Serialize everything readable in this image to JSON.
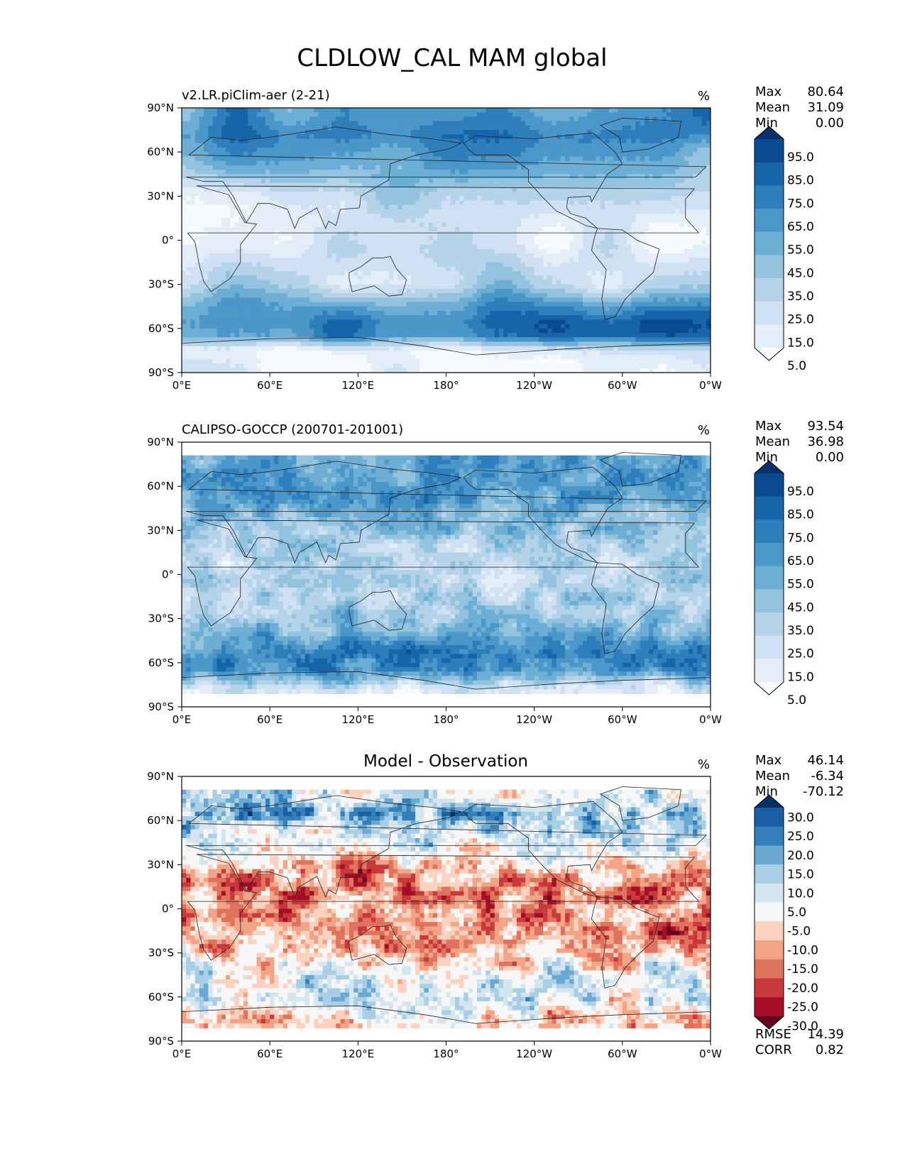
{
  "figure": {
    "title": "CLDLOW_CAL MAM global"
  },
  "chart_data": [
    {
      "type": "heatmap",
      "projection": "PlateCarree",
      "title": "v2.LR.piClim-aer (2-21)",
      "centered_title": "",
      "units": "%",
      "stats": [
        {
          "label": "Max",
          "value": "80.64"
        },
        {
          "label": "Mean",
          "value": "31.09"
        },
        {
          "label": "Min",
          "value": "0.00"
        }
      ],
      "x_ticks": [
        "0°E",
        "60°E",
        "120°E",
        "180°",
        "120°W",
        "60°W",
        "0°W"
      ],
      "y_ticks": [
        "90°N",
        "60°N",
        "30°N",
        "0°",
        "30°S",
        "60°S",
        "90°S"
      ],
      "xlim": [
        0,
        360
      ],
      "ylim": [
        -90,
        90
      ],
      "colorbar": {
        "colors": [
          "#f7fbff",
          "#e3eef9",
          "#cfe1f2",
          "#b5d4e9",
          "#93c3df",
          "#6daed5",
          "#4b97c9",
          "#2f7ebc",
          "#1864aa",
          "#0a4a90",
          "#08306b"
        ],
        "labels": [
          "95.0",
          "85.0",
          "75.0",
          "65.0",
          "55.0",
          "45.0",
          "35.0",
          "25.0",
          "15.0",
          "5.0"
        ],
        "extend": "both"
      },
      "field_summary": {
        "kind": "cloud",
        "bands": [
          {
            "lat": 85,
            "value": 62
          },
          {
            "lat": 72,
            "value": 70
          },
          {
            "lat": 60,
            "value": 58
          },
          {
            "lat": 45,
            "value": 45
          },
          {
            "lat": 30,
            "value": 25
          },
          {
            "lat": 15,
            "value": 15
          },
          {
            "lat": 0,
            "value": 12
          },
          {
            "lat": -15,
            "value": 22
          },
          {
            "lat": -30,
            "value": 30
          },
          {
            "lat": -45,
            "value": 60
          },
          {
            "lat": -55,
            "value": 72
          },
          {
            "lat": -65,
            "value": 68
          },
          {
            "lat": -75,
            "value": 10
          },
          {
            "lat": -85,
            "value": 6
          }
        ]
      }
    },
    {
      "type": "heatmap",
      "projection": "PlateCarree",
      "title": "CALIPSO-GOCCP (200701-201001)",
      "centered_title": "",
      "units": "%",
      "stats": [
        {
          "label": "Max",
          "value": "93.54"
        },
        {
          "label": "Mean",
          "value": "36.98"
        },
        {
          "label": "Min",
          "value": "0.00"
        }
      ],
      "x_ticks": [
        "0°E",
        "60°E",
        "120°E",
        "180°",
        "120°W",
        "60°W",
        "0°W"
      ],
      "y_ticks": [
        "90°N",
        "60°N",
        "30°N",
        "0°",
        "30°S",
        "60°S",
        "90°S"
      ],
      "xlim": [
        0,
        360
      ],
      "ylim": [
        -90,
        90
      ],
      "data_lat_range": [
        -82,
        82
      ],
      "colorbar": {
        "colors": [
          "#f7fbff",
          "#e3eef9",
          "#cfe1f2",
          "#b5d4e9",
          "#93c3df",
          "#6daed5",
          "#4b97c9",
          "#2f7ebc",
          "#1864aa",
          "#0a4a90",
          "#08306b"
        ],
        "labels": [
          "95.0",
          "85.0",
          "75.0",
          "65.0",
          "55.0",
          "45.0",
          "35.0",
          "25.0",
          "15.0",
          "5.0"
        ],
        "extend": "both"
      },
      "field_summary": {
        "kind": "cloud",
        "bands": [
          {
            "lat": 78,
            "value": 55
          },
          {
            "lat": 65,
            "value": 52
          },
          {
            "lat": 50,
            "value": 55
          },
          {
            "lat": 35,
            "value": 40
          },
          {
            "lat": 20,
            "value": 32
          },
          {
            "lat": 5,
            "value": 26
          },
          {
            "lat": -10,
            "value": 30
          },
          {
            "lat": -25,
            "value": 38
          },
          {
            "lat": -40,
            "value": 52
          },
          {
            "lat": -55,
            "value": 68
          },
          {
            "lat": -65,
            "value": 62
          },
          {
            "lat": -78,
            "value": 14
          }
        ]
      }
    },
    {
      "type": "heatmap",
      "projection": "PlateCarree",
      "title": "",
      "centered_title": "Model - Observation",
      "units": "%",
      "stats": [
        {
          "label": "Max",
          "value": "46.14"
        },
        {
          "label": "Mean",
          "value": "-6.34"
        },
        {
          "label": "Min",
          "value": "-70.12"
        }
      ],
      "extra_stats": [
        {
          "label": "RMSE",
          "value": "14.39"
        },
        {
          "label": "CORR",
          "value": "0.82"
        }
      ],
      "x_ticks": [
        "0°E",
        "60°E",
        "120°E",
        "180°",
        "120°W",
        "60°W",
        "0°W"
      ],
      "y_ticks": [
        "90°N",
        "60°N",
        "30°N",
        "0°",
        "30°S",
        "60°S",
        "90°S"
      ],
      "xlim": [
        0,
        360
      ],
      "ylim": [
        -90,
        90
      ],
      "data_lat_range": [
        -82,
        82
      ],
      "colorbar": {
        "colors": [
          "#67001f",
          "#a50f26",
          "#c9393b",
          "#e0735e",
          "#f2a486",
          "#fbd2bf",
          "#f7f7f7",
          "#d6e6f1",
          "#a8cfe5",
          "#6aa9d1",
          "#3580bb",
          "#1a5fa5",
          "#053061"
        ],
        "labels": [
          "30.0",
          "25.0",
          "20.0",
          "15.0",
          "10.0",
          "5.0",
          "-5.0",
          "-10.0",
          "-15.0",
          "-20.0",
          "-25.0",
          "-30.0"
        ],
        "extend": "both"
      },
      "field_summary": {
        "kind": "diff",
        "bands": [
          {
            "lat": 78,
            "value": 4
          },
          {
            "lat": 65,
            "value": 14
          },
          {
            "lat": 50,
            "value": 6
          },
          {
            "lat": 35,
            "value": -4
          },
          {
            "lat": 25,
            "value": -12
          },
          {
            "lat": 12,
            "value": -14
          },
          {
            "lat": 0,
            "value": -10
          },
          {
            "lat": -15,
            "value": -16
          },
          {
            "lat": -28,
            "value": -10
          },
          {
            "lat": -45,
            "value": 3
          },
          {
            "lat": -60,
            "value": 2
          },
          {
            "lat": -72,
            "value": -2
          },
          {
            "lat": -78,
            "value": -6
          }
        ]
      }
    }
  ]
}
